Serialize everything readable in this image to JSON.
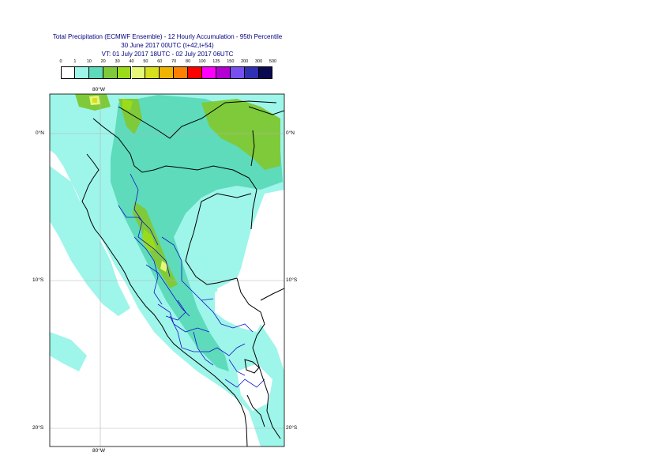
{
  "title": {
    "line1": "Total Precipitation (ECMWF Ensemble) - 12 Hourly Accumulation - 95th Percentile",
    "line2": "30 June 2017 00UTC (t+42,t+54)",
    "line3": "VT: 01 July 2017 18UTC - 02 July 2017 06UTC"
  },
  "legend": {
    "labels": [
      "0",
      "1",
      "10",
      "20",
      "30",
      "40",
      "50",
      "60",
      "70",
      "80",
      "100",
      "125",
      "150",
      "200",
      "300",
      "500"
    ],
    "colors": [
      "#ffffff",
      "#9ef5ea",
      "#5ddbbb",
      "#7fca3a",
      "#9bdc1a",
      "#e6f87a",
      "#d8e01e",
      "#f0b400",
      "#ff8000",
      "#ff0000",
      "#ff00ff",
      "#b400d2",
      "#7850f0",
      "#3030b4",
      "#0a0a50"
    ]
  },
  "axes": {
    "lon_top": "80°W",
    "lon_bottom": "80°W",
    "lat_labels": [
      "0°N",
      "10°S",
      "20°S"
    ]
  }
}
